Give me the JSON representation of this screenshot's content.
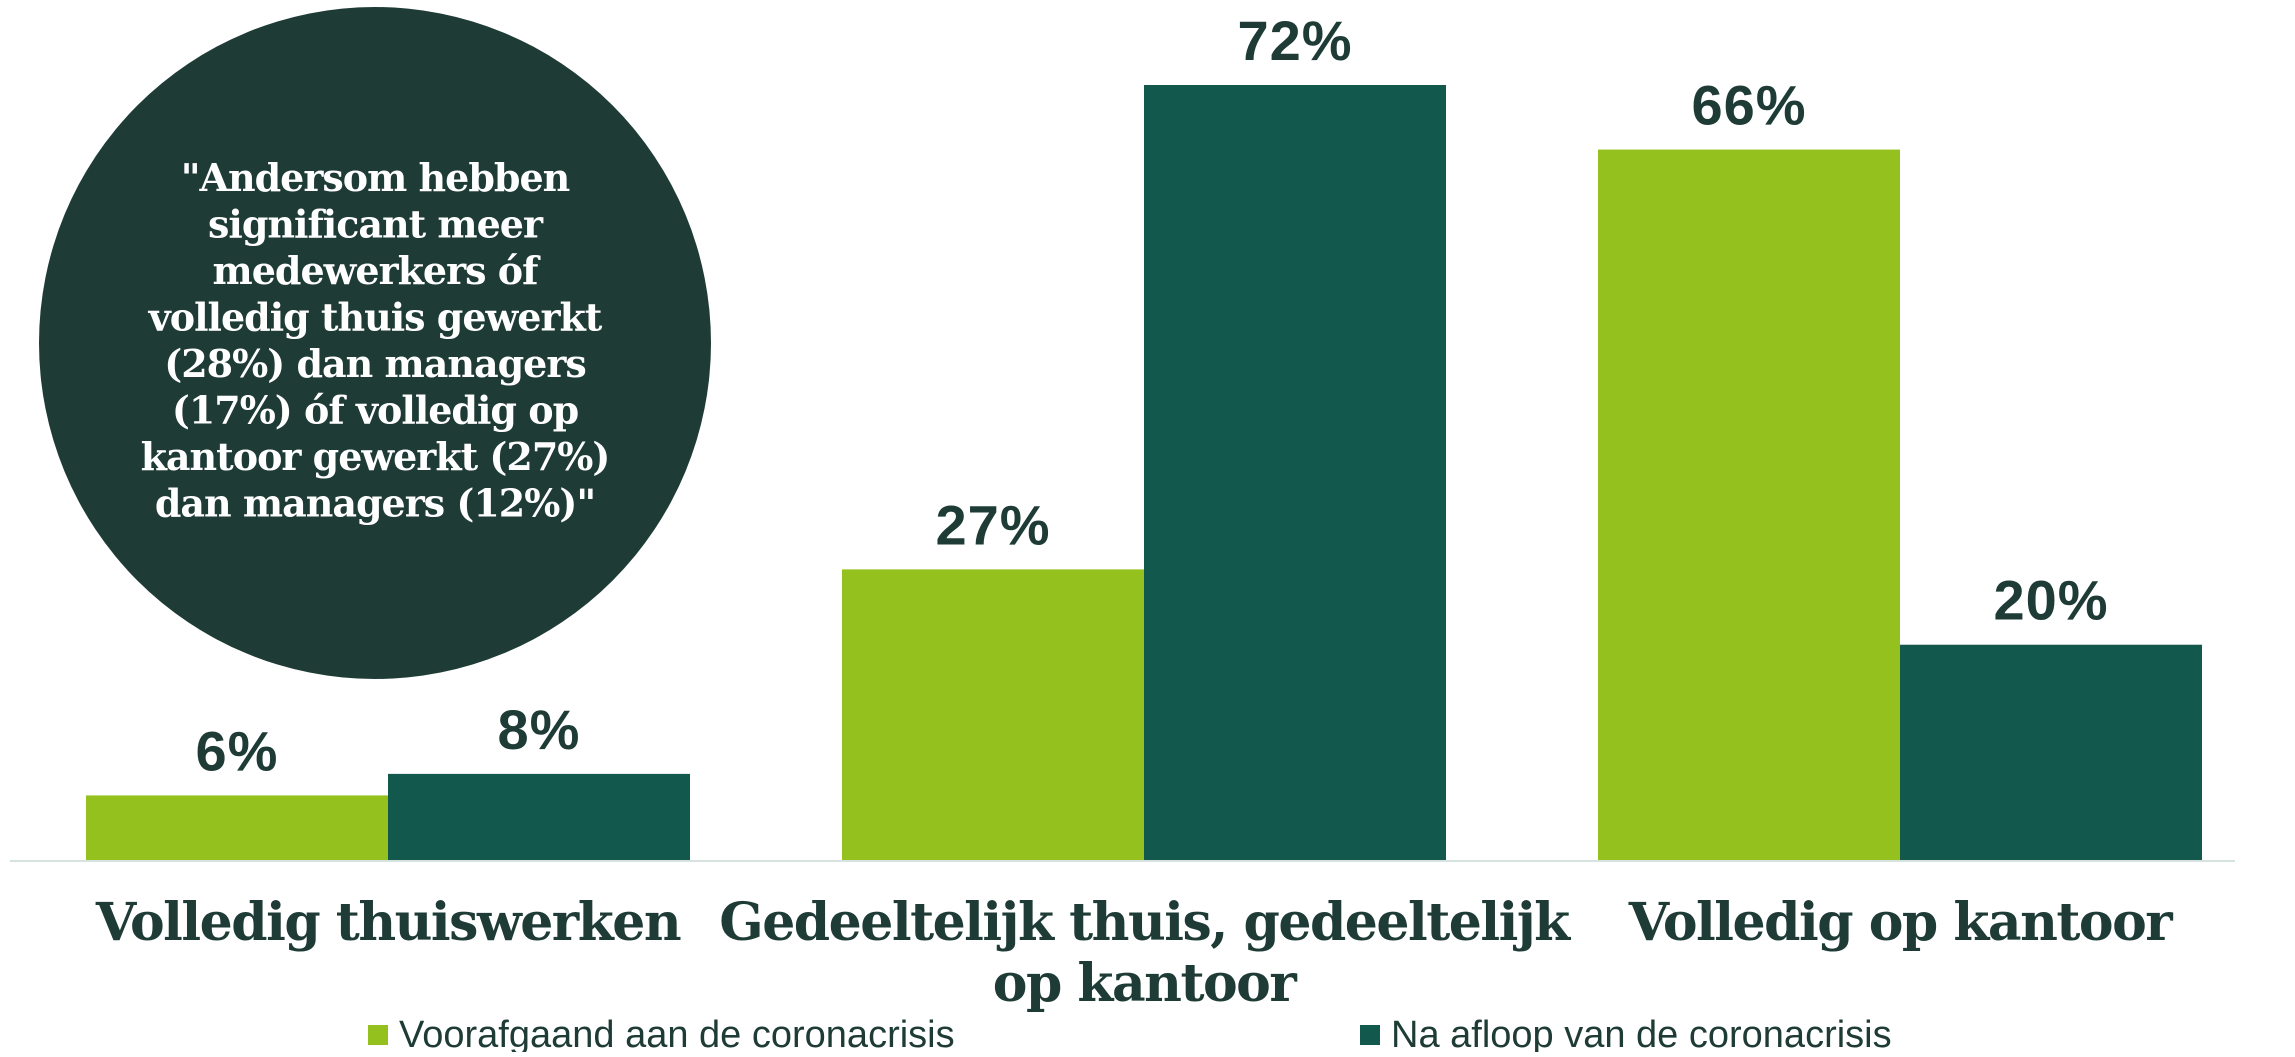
{
  "colors": {
    "before": "#95c11f",
    "after": "#13584c",
    "circle": "#1e3b36",
    "text": "#1e3b36",
    "baseline": "#d6e2df"
  },
  "quote": {
    "lines": [
      "\"Andersom hebben",
      "significant meer",
      "medewerkers óf",
      "volledig thuis gewerkt",
      "(28%) dan managers",
      "(17%) óf volledig op",
      "kantoor gewerkt (27%)",
      "dan managers (12%)\""
    ]
  },
  "chart_data": {
    "type": "bar",
    "categories": [
      [
        "Volledig thuiswerken"
      ],
      [
        "Gedeeltelijk thuis, gedeeltelijk",
        "op kantoor"
      ],
      [
        "Volledig op kantoor"
      ]
    ],
    "series": [
      {
        "name": "Voorafgaand aan de coronacrisis",
        "values": [
          6,
          27,
          66
        ],
        "labels": [
          "6%",
          "27%",
          "66%"
        ]
      },
      {
        "name": "Na afloop van de coronacrisis",
        "values": [
          8,
          72,
          20
        ],
        "labels": [
          "8%",
          "72%",
          "20%"
        ]
      }
    ],
    "ylim": [
      0,
      72
    ],
    "grid": false,
    "legend_position": "bottom",
    "title": "",
    "xlabel": "",
    "ylabel": ""
  }
}
